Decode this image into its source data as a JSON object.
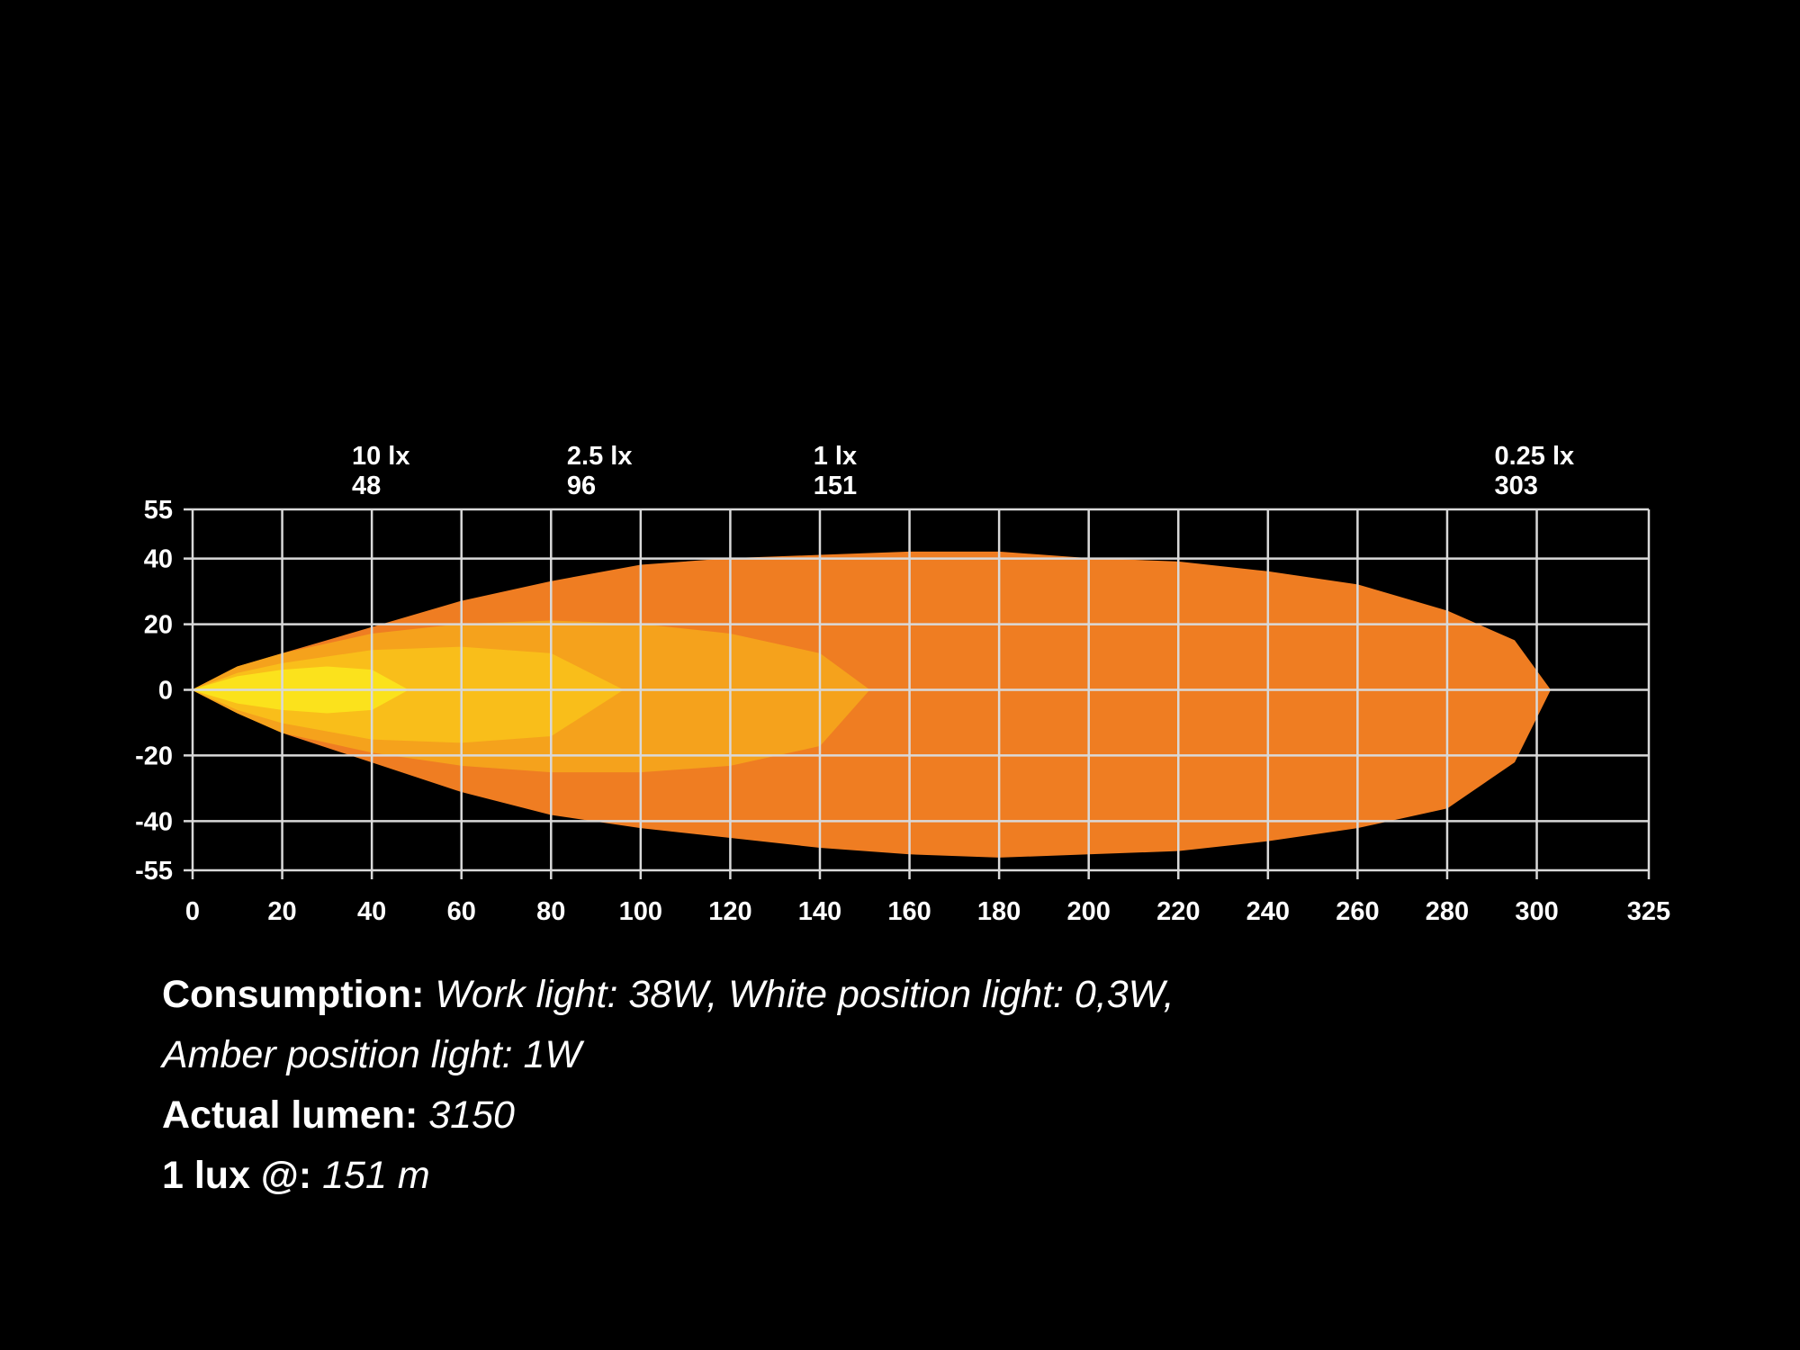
{
  "chart_data": {
    "type": "beam",
    "xlim": [
      0,
      325
    ],
    "ylim": [
      -55,
      55
    ],
    "xticks": [
      0,
      20,
      40,
      60,
      80,
      100,
      120,
      140,
      160,
      180,
      200,
      220,
      240,
      260,
      280,
      300,
      325
    ],
    "yticks": [
      55,
      40,
      20,
      0,
      -20,
      -40,
      -55
    ],
    "grid": true,
    "zones": [
      {
        "name": "0.25 lx",
        "reach": 303,
        "color": "#ef7d22",
        "x": [
          0,
          10,
          20,
          40,
          60,
          80,
          100,
          120,
          140,
          160,
          180,
          200,
          220,
          240,
          260,
          280,
          295,
          303
        ],
        "upper": [
          0,
          7,
          11,
          19,
          27,
          33,
          38,
          40,
          41,
          42,
          42,
          40,
          39,
          36,
          32,
          24,
          15,
          0
        ],
        "lower": [
          0,
          -7,
          -13,
          -22,
          -31,
          -38,
          -42,
          -45,
          -48,
          -50,
          -51,
          -50,
          -49,
          -46,
          -42,
          -36,
          -22,
          0
        ]
      },
      {
        "name": "1 lx",
        "reach": 151,
        "color": "#f5a21c",
        "x": [
          0,
          10,
          20,
          40,
          60,
          80,
          100,
          120,
          140,
          151
        ],
        "upper": [
          0,
          7,
          11,
          17,
          20,
          21,
          20,
          17,
          11,
          0
        ],
        "lower": [
          0,
          -7,
          -13,
          -19,
          -23,
          -25,
          -25,
          -23,
          -17,
          0
        ]
      },
      {
        "name": "2.5 lx",
        "reach": 96,
        "color": "#f9be1a",
        "x": [
          0,
          10,
          20,
          40,
          60,
          80,
          96
        ],
        "upper": [
          0,
          5,
          8,
          12,
          13,
          11,
          0
        ],
        "lower": [
          0,
          -6,
          -10,
          -15,
          -16,
          -14,
          0
        ]
      },
      {
        "name": "10 lx",
        "reach": 48,
        "color": "#fbe21c",
        "x": [
          0,
          10,
          20,
          30,
          40,
          48
        ],
        "upper": [
          0,
          4,
          6,
          7,
          6,
          0
        ],
        "lower": [
          0,
          -4,
          -6,
          -7,
          -6,
          0
        ]
      }
    ]
  },
  "specs": [
    {
      "label": "Consumption:",
      "value_lines": [
        "Work light: 38W, White position light: 0,3W,",
        "Amber position light: 1W"
      ]
    },
    {
      "label": "Actual lumen:",
      "value_lines": [
        "3150"
      ]
    },
    {
      "label": "1 lux @:",
      "value_lines": [
        "151 m"
      ]
    }
  ]
}
